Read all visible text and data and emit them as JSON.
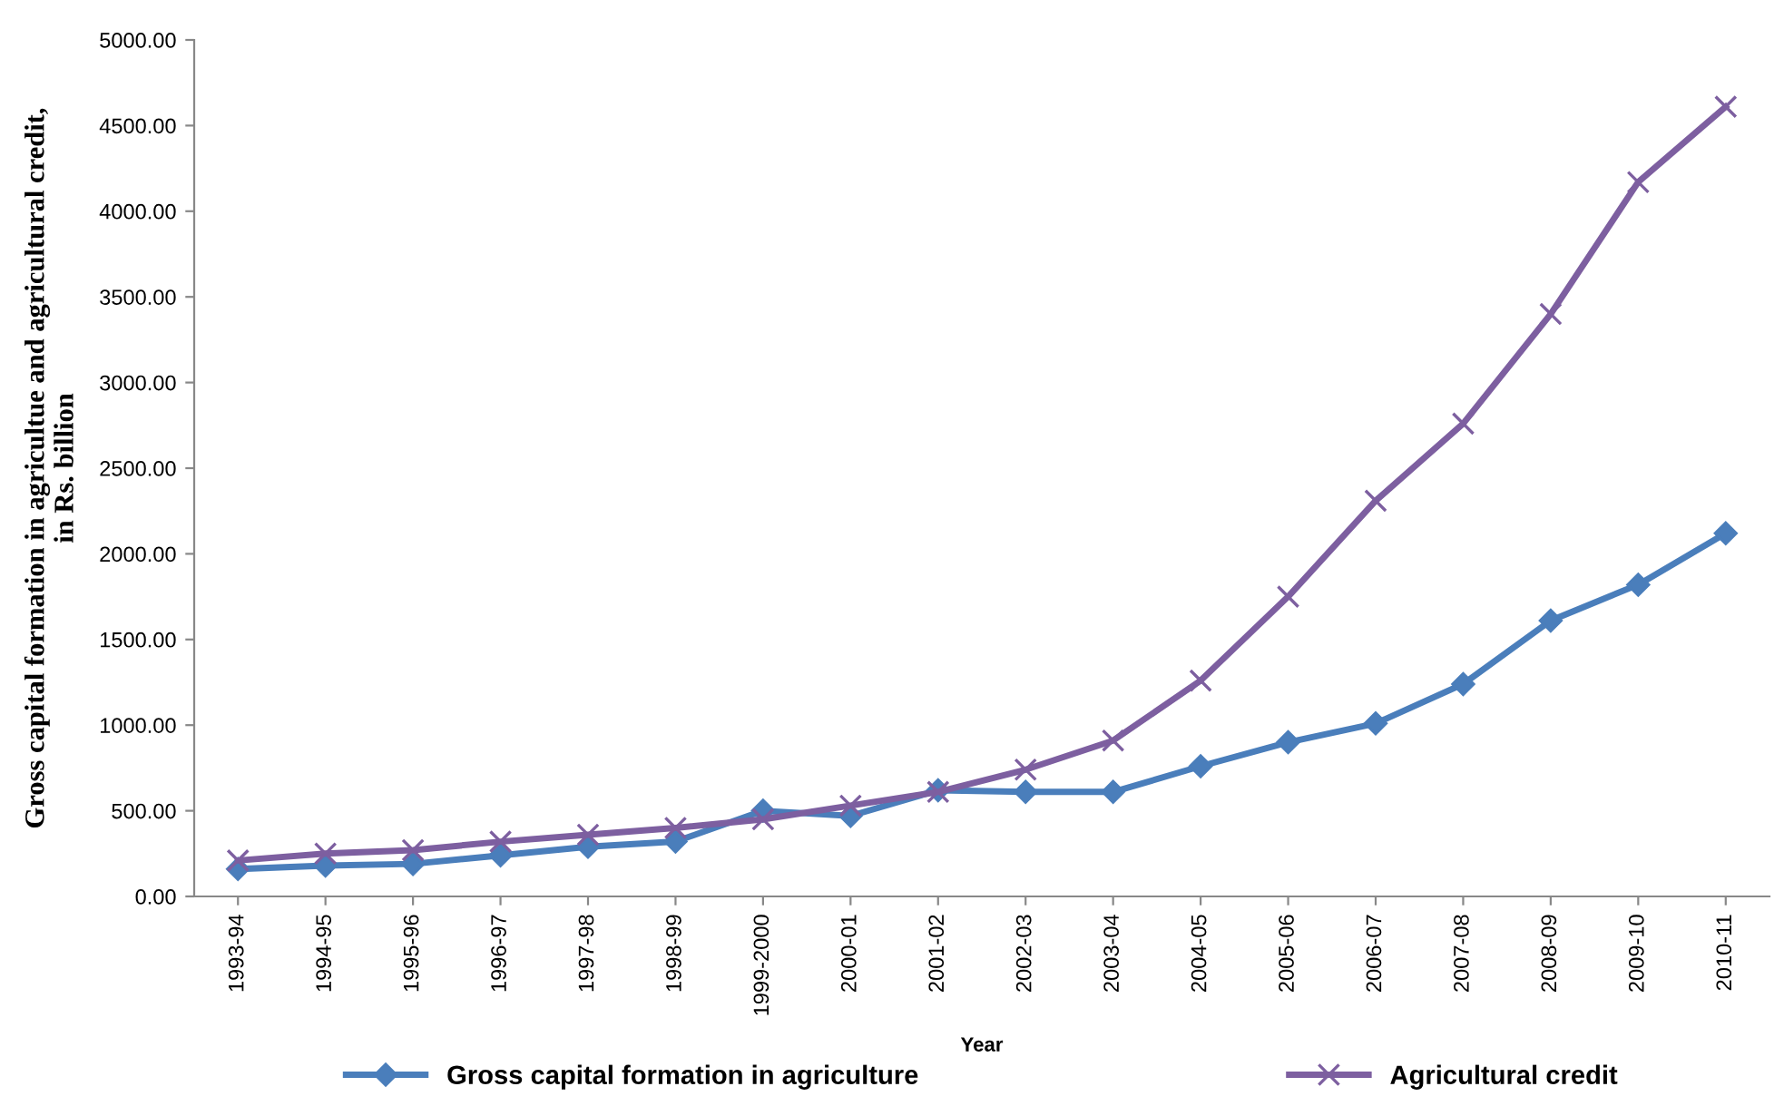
{
  "chart_data": {
    "type": "line",
    "xlabel": "Year",
    "ylabel": "Gross capital formation in agricultue and agricultural credit,\nin Rs. billion",
    "categories": [
      "1993-94",
      "1994-95",
      "1995-96",
      "1996-97",
      "1997-98",
      "1998-99",
      "1999-2000",
      "2000-01",
      "2001-02",
      "2002-03",
      "2003-04",
      "2004-05",
      "2005-06",
      "2006-07",
      "2007-08",
      "2008-09",
      "2009-10",
      "2010-11"
    ],
    "series": [
      {
        "name": "Gross capital formation in agriculture",
        "color": "#4a7ebb",
        "marker": "diamond",
        "values": [
          160,
          180,
          190,
          240,
          290,
          320,
          500,
          470,
          620,
          610,
          610,
          760,
          900,
          1010,
          1240,
          1610,
          1820,
          2120
        ]
      },
      {
        "name": "Agricultural credit",
        "color": "#7d5fa0",
        "marker": "cross",
        "values": [
          210,
          250,
          270,
          320,
          360,
          400,
          450,
          530,
          610,
          740,
          910,
          1260,
          1750,
          2310,
          2760,
          3400,
          4170,
          4610
        ]
      }
    ],
    "ylim": [
      0,
      5000
    ],
    "yticks": [
      {
        "value": 0,
        "label": "0.00"
      },
      {
        "value": 500,
        "label": "500.00"
      },
      {
        "value": 1000,
        "label": "1000.00"
      },
      {
        "value": 1500,
        "label": "1500.00"
      },
      {
        "value": 2000,
        "label": "2000.00"
      },
      {
        "value": 2500,
        "label": "2500.00"
      },
      {
        "value": 3000,
        "label": "3000.00"
      },
      {
        "value": 3500,
        "label": "3500.00"
      },
      {
        "value": 4000,
        "label": "4000.00"
      },
      {
        "value": 4500,
        "label": "4500.00"
      },
      {
        "value": 5000,
        "label": "5000.00"
      }
    ],
    "grid": false,
    "legend": "bottom",
    "line_style": "solid"
  }
}
